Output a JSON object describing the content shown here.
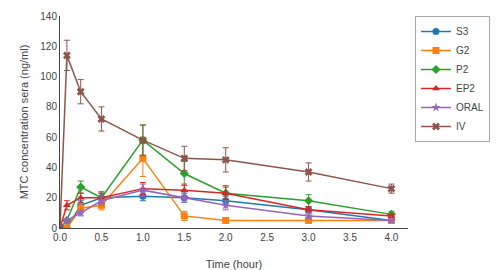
{
  "chart_data": {
    "type": "line",
    "x_label": "Time (hour)",
    "y_label": "MTC concentration sera (ng/ml)",
    "x": [
      0,
      0.083,
      0.25,
      0.5,
      1.0,
      1.5,
      2.0,
      3.0,
      4.0
    ],
    "series": [
      {
        "name": "S3",
        "marker": "circle",
        "values": [
          0,
          0,
          15,
          20,
          21,
          20,
          18,
          12,
          5
        ],
        "errors": [
          0,
          0,
          3,
          3,
          3,
          3,
          3,
          2,
          1
        ]
      },
      {
        "name": "G2",
        "marker": "square",
        "values": [
          0,
          0,
          13,
          15,
          46,
          8,
          5,
          5,
          5
        ],
        "errors": [
          0,
          0,
          3,
          3,
          12,
          3,
          1,
          1,
          1
        ]
      },
      {
        "name": "P2",
        "marker": "diamond",
        "values": [
          0,
          5,
          27,
          20,
          58,
          36,
          23,
          18,
          9
        ],
        "errors": [
          0,
          1,
          4,
          4,
          10,
          8,
          5,
          4,
          2
        ]
      },
      {
        "name": "EP2",
        "marker": "triangle-up",
        "values": [
          0,
          15,
          20,
          20,
          26,
          25,
          23,
          12,
          8
        ],
        "errors": [
          0,
          3,
          3,
          3,
          4,
          4,
          4,
          2,
          1
        ]
      },
      {
        "name": "ORAL",
        "marker": "star",
        "values": [
          0,
          5,
          10,
          18,
          25,
          20,
          15,
          8,
          5
        ],
        "errors": [
          0,
          1,
          2,
          3,
          4,
          3,
          3,
          2,
          1
        ]
      },
      {
        "name": "IV",
        "marker": "x",
        "values": [
          0,
          114,
          90,
          72,
          58,
          46,
          45,
          37,
          26
        ],
        "errors": [
          0,
          10,
          8,
          8,
          10,
          8,
          8,
          6,
          3
        ]
      }
    ],
    "xlim": [
      0,
      4.2
    ],
    "ylim": [
      0,
      140
    ],
    "xticks": [
      {
        "value": 0,
        "label": "0.0"
      },
      0.5,
      {
        "value": 1.0,
        "label": "1.0"
      },
      1.5,
      {
        "value": 2.0,
        "label": "2.0"
      },
      2.5,
      {
        "value": 3.0,
        "label": "3.0"
      },
      3.5,
      {
        "value": 4.0,
        "label": "4.0"
      }
    ],
    "yticks": [
      0,
      20,
      40,
      60,
      80,
      100,
      120,
      140
    ],
    "line_style": "solid",
    "grid": false,
    "legend": "upper right"
  }
}
